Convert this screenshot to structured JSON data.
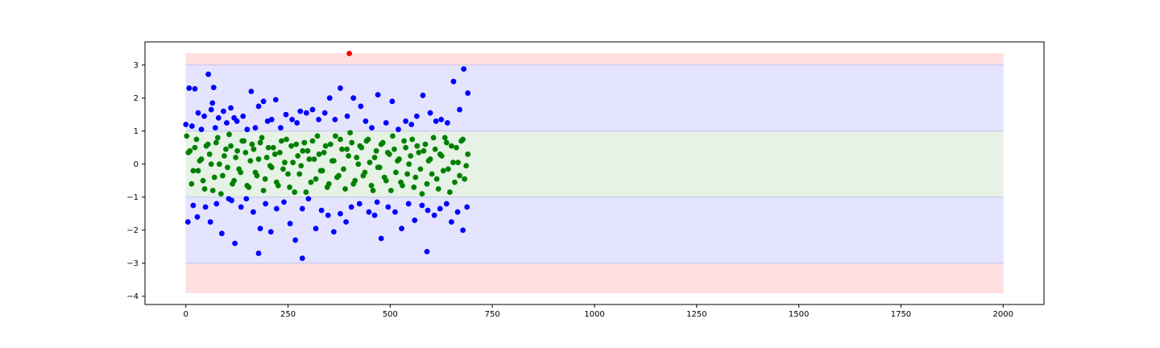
{
  "chart_data": {
    "type": "scatter",
    "title": "",
    "xlabel": "",
    "ylabel": "",
    "xlim": [
      -100,
      2100
    ],
    "ylim": [
      -4.25,
      3.7
    ],
    "xticks": [
      0,
      250,
      500,
      750,
      1000,
      1250,
      1500,
      1750,
      2000
    ],
    "xtick_labels": [
      "0",
      "250",
      "500",
      "750",
      "1000",
      "1250",
      "1500",
      "1750",
      "2000"
    ],
    "yticks": [
      3,
      2,
      1,
      0,
      -1,
      -2,
      -3,
      -4
    ],
    "ytick_labels": [
      "3",
      "2",
      "1",
      "0",
      "−1",
      "−2",
      "−3",
      "−4"
    ],
    "grid": false,
    "bands": [
      {
        "name": "",
        "x": [
          0,
          2000
        ],
        "y": [
          3.0,
          3.35
        ],
        "color": "#ffe0e0"
      },
      {
        "name": "",
        "x": [
          0,
          2000
        ],
        "y": [
          -3.9,
          -3.0
        ],
        "color": "#ffe0e0"
      },
      {
        "name": "",
        "x": [
          0,
          2000
        ],
        "y": [
          1.0,
          3.0
        ],
        "color": "#e4e4ff"
      },
      {
        "name": "",
        "x": [
          0,
          2000
        ],
        "y": [
          -3.0,
          -1.0
        ],
        "color": "#e4e4ff"
      },
      {
        "name": "",
        "x": [
          0,
          2000
        ],
        "y": [
          -1.0,
          1.0
        ],
        "color": "#e5f2e5"
      }
    ],
    "series": [
      {
        "color": "#0000ff",
        "x": [
          0,
          8,
          15,
          22,
          30,
          38,
          45,
          55,
          62,
          68,
          72,
          80,
          92,
          100,
          110,
          118,
          125,
          140,
          150,
          160,
          170,
          178,
          190,
          200,
          210,
          220,
          232,
          245,
          260,
          272,
          280,
          295,
          310,
          325,
          340,
          352,
          365,
          378,
          395,
          410,
          428,
          440,
          455,
          470,
          490,
          505,
          520,
          538,
          552,
          565,
          580,
          598,
          612,
          625,
          640,
          655,
          670,
          680,
          690,
          5,
          18,
          28,
          48,
          60,
          75,
          88,
          105,
          120,
          135,
          148,
          165,
          182,
          195,
          208,
          222,
          240,
          255,
          268,
          285,
          300,
          318,
          332,
          348,
          362,
          378,
          392,
          405,
          425,
          448,
          462,
          478,
          495,
          512,
          528,
          545,
          560,
          578,
          592,
          608,
          622,
          638,
          650,
          665,
          678,
          688,
          65,
          178,
          112,
          285,
          590,
          468
        ],
        "y": [
          1.2,
          2.3,
          1.15,
          2.28,
          1.55,
          1.05,
          1.45,
          2.72,
          1.65,
          2.32,
          1.1,
          1.4,
          1.6,
          1.25,
          1.7,
          1.4,
          1.3,
          1.45,
          1.05,
          2.2,
          1.1,
          1.75,
          1.9,
          1.3,
          1.35,
          1.95,
          1.1,
          1.5,
          1.35,
          1.25,
          1.6,
          1.55,
          1.65,
          1.35,
          1.55,
          2.0,
          1.35,
          2.3,
          1.45,
          2.0,
          1.75,
          1.3,
          1.1,
          2.1,
          1.25,
          1.9,
          1.05,
          1.3,
          1.2,
          1.45,
          2.08,
          1.55,
          1.3,
          1.35,
          1.25,
          2.5,
          1.65,
          2.88,
          2.15,
          -1.75,
          -1.25,
          -1.6,
          -1.3,
          -1.75,
          -1.2,
          -2.1,
          -1.05,
          -2.4,
          -1.3,
          -1.05,
          -1.45,
          -1.95,
          -1.2,
          -2.05,
          -1.35,
          -1.15,
          -1.8,
          -2.3,
          -1.35,
          -1.05,
          -1.95,
          -1.4,
          -1.55,
          -2.05,
          -1.5,
          -1.75,
          -1.3,
          -1.2,
          -1.45,
          -1.55,
          -2.25,
          -1.3,
          -1.45,
          -1.95,
          -1.2,
          -1.7,
          -1.25,
          -1.4,
          -1.55,
          -1.35,
          -1.2,
          -1.75,
          -1.45,
          -2.0,
          -1.3,
          1.85,
          -2.7,
          -1.1,
          -2.85,
          -2.65,
          -1.15
        ]
      },
      {
        "color": "#008000",
        "x": [
          2,
          10,
          18,
          26,
          34,
          42,
          50,
          58,
          66,
          74,
          82,
          90,
          98,
          106,
          114,
          122,
          130,
          138,
          146,
          154,
          162,
          170,
          178,
          186,
          194,
          202,
          210,
          218,
          226,
          234,
          242,
          250,
          258,
          266,
          274,
          282,
          290,
          298,
          306,
          314,
          322,
          330,
          338,
          346,
          354,
          362,
          370,
          378,
          386,
          394,
          402,
          410,
          418,
          426,
          434,
          442,
          450,
          458,
          466,
          474,
          482,
          490,
          498,
          506,
          514,
          522,
          530,
          538,
          546,
          554,
          562,
          570,
          578,
          586,
          594,
          602,
          610,
          618,
          626,
          634,
          642,
          650,
          658,
          666,
          674,
          682,
          690,
          6,
          14,
          22,
          30,
          38,
          46,
          54,
          62,
          70,
          78,
          86,
          94,
          102,
          110,
          118,
          126,
          134,
          142,
          150,
          158,
          166,
          174,
          182,
          190,
          198,
          206,
          214,
          222,
          230,
          238,
          246,
          254,
          262,
          270,
          278,
          286,
          294,
          302,
          310,
          318,
          326,
          334,
          342,
          350,
          358,
          366,
          374,
          382,
          390,
          398,
          406,
          414,
          422,
          430,
          438,
          446,
          454,
          462,
          470,
          478,
          486,
          494,
          502,
          510,
          518,
          526,
          534,
          542,
          550,
          558,
          566,
          574,
          582,
          590,
          598,
          606,
          614,
          622,
          630,
          638,
          646,
          654,
          662,
          670,
          678,
          686
        ],
        "y": [
          0.85,
          0.4,
          -0.2,
          0.75,
          0.1,
          -0.5,
          0.55,
          0.3,
          -0.8,
          0.65,
          0.0,
          -0.35,
          0.45,
          0.9,
          -0.6,
          0.2,
          -0.15,
          0.7,
          0.35,
          -0.7,
          0.6,
          -0.25,
          0.15,
          0.8,
          -0.45,
          0.5,
          -0.1,
          0.3,
          -0.65,
          0.7,
          0.05,
          -0.3,
          0.55,
          -0.85,
          0.25,
          -0.05,
          0.65,
          0.4,
          -0.55,
          0.15,
          0.85,
          -0.2,
          0.35,
          -0.7,
          0.6,
          0.1,
          -0.4,
          0.75,
          -0.15,
          0.45,
          0.95,
          -0.6,
          0.2,
          0.55,
          -0.35,
          0.7,
          0.05,
          -0.8,
          0.4,
          -0.1,
          0.65,
          -0.5,
          0.3,
          0.85,
          -0.25,
          0.15,
          -0.65,
          0.5,
          0.0,
          0.75,
          -0.4,
          0.35,
          -0.9,
          0.6,
          0.1,
          -0.3,
          0.45,
          -0.75,
          0.25,
          0.8,
          -0.15,
          0.55,
          -0.55,
          0.05,
          0.7,
          -0.45,
          0.3,
          0.35,
          -0.6,
          0.5,
          -0.2,
          0.15,
          -0.75,
          0.6,
          0.0,
          -0.4,
          0.8,
          -0.9,
          0.25,
          -0.1,
          0.55,
          -0.5,
          0.4,
          -0.25,
          0.7,
          -0.65,
          0.1,
          0.45,
          -0.35,
          0.65,
          -0.8,
          0.2,
          -0.05,
          0.5,
          -0.55,
          0.35,
          -0.15,
          0.75,
          -0.7,
          0.05,
          0.6,
          -0.3,
          0.4,
          -0.85,
          0.15,
          0.7,
          -0.45,
          0.3,
          -0.2,
          0.55,
          -0.6,
          0.1,
          0.85,
          -0.35,
          0.45,
          -0.75,
          0.25,
          0.65,
          -0.5,
          0.0,
          0.5,
          -0.25,
          0.75,
          -0.65,
          0.2,
          -0.1,
          0.6,
          -0.4,
          0.35,
          -0.8,
          0.45,
          0.1,
          -0.55,
          0.7,
          -0.3,
          0.25,
          -0.7,
          0.55,
          -0.15,
          0.4,
          -0.6,
          0.15,
          0.8,
          -0.45,
          0.3,
          -0.2,
          0.65,
          -0.85,
          0.05,
          0.5,
          -0.35,
          0.75,
          -0.05
        ]
      },
      {
        "color": "#ff0000",
        "x": [
          400
        ],
        "y": [
          3.35
        ]
      }
    ]
  }
}
